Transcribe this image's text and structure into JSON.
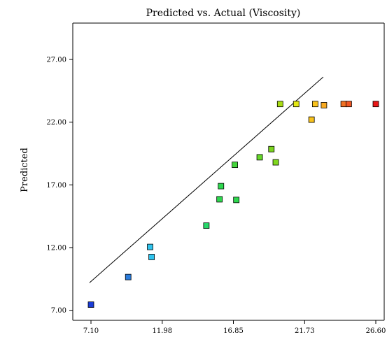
{
  "chart_data": {
    "type": "scatter",
    "title": "Predicted vs. Actual (Viscosity)",
    "xlabel": "",
    "ylabel": "Predicted",
    "xlim": [
      7.1,
      26.6
    ],
    "ylim": [
      6.2,
      29.9
    ],
    "x_ticks": [
      7.1,
      11.98,
      16.85,
      21.73,
      26.6
    ],
    "x_tick_labels": [
      "7.10",
      "11.98",
      "16.85",
      "21.73",
      "26.60"
    ],
    "y_ticks": [
      7.0,
      12.0,
      17.0,
      22.0,
      27.0
    ],
    "y_tick_labels": [
      "7.00",
      "12.00",
      "17.00",
      "22.00",
      "27.00"
    ],
    "grid": false,
    "legend": "none",
    "reference_line": {
      "x": [
        7.0,
        23.0
      ],
      "y": [
        9.2,
        25.6
      ]
    },
    "points": [
      {
        "x": 7.1,
        "y": 7.45,
        "color": "#1a3cd6"
      },
      {
        "x": 9.65,
        "y": 9.65,
        "color": "#2a7cdc"
      },
      {
        "x": 11.15,
        "y": 12.05,
        "color": "#2fc4ee"
      },
      {
        "x": 11.25,
        "y": 11.25,
        "color": "#2fc4ee"
      },
      {
        "x": 15.0,
        "y": 13.75,
        "color": "#27d86a"
      },
      {
        "x": 15.9,
        "y": 15.85,
        "color": "#2ed84e"
      },
      {
        "x": 16.0,
        "y": 16.9,
        "color": "#2ed84e"
      },
      {
        "x": 17.05,
        "y": 15.8,
        "color": "#2ed84e"
      },
      {
        "x": 16.95,
        "y": 18.6,
        "color": "#44d43c"
      },
      {
        "x": 18.65,
        "y": 19.2,
        "color": "#66d82a"
      },
      {
        "x": 19.45,
        "y": 19.85,
        "color": "#7ad41e"
      },
      {
        "x": 19.75,
        "y": 18.8,
        "color": "#80d81e"
      },
      {
        "x": 20.05,
        "y": 23.45,
        "color": "#a8dc12"
      },
      {
        "x": 21.15,
        "y": 23.45,
        "color": "#e4e814"
      },
      {
        "x": 22.2,
        "y": 22.2,
        "color": "#f8c21c"
      },
      {
        "x": 22.45,
        "y": 23.45,
        "color": "#f8c21c"
      },
      {
        "x": 23.05,
        "y": 23.35,
        "color": "#f8aa22"
      },
      {
        "x": 24.4,
        "y": 23.45,
        "color": "#f07022"
      },
      {
        "x": 24.75,
        "y": 23.45,
        "color": "#f05522"
      },
      {
        "x": 26.6,
        "y": 23.45,
        "color": "#e81818"
      }
    ]
  }
}
